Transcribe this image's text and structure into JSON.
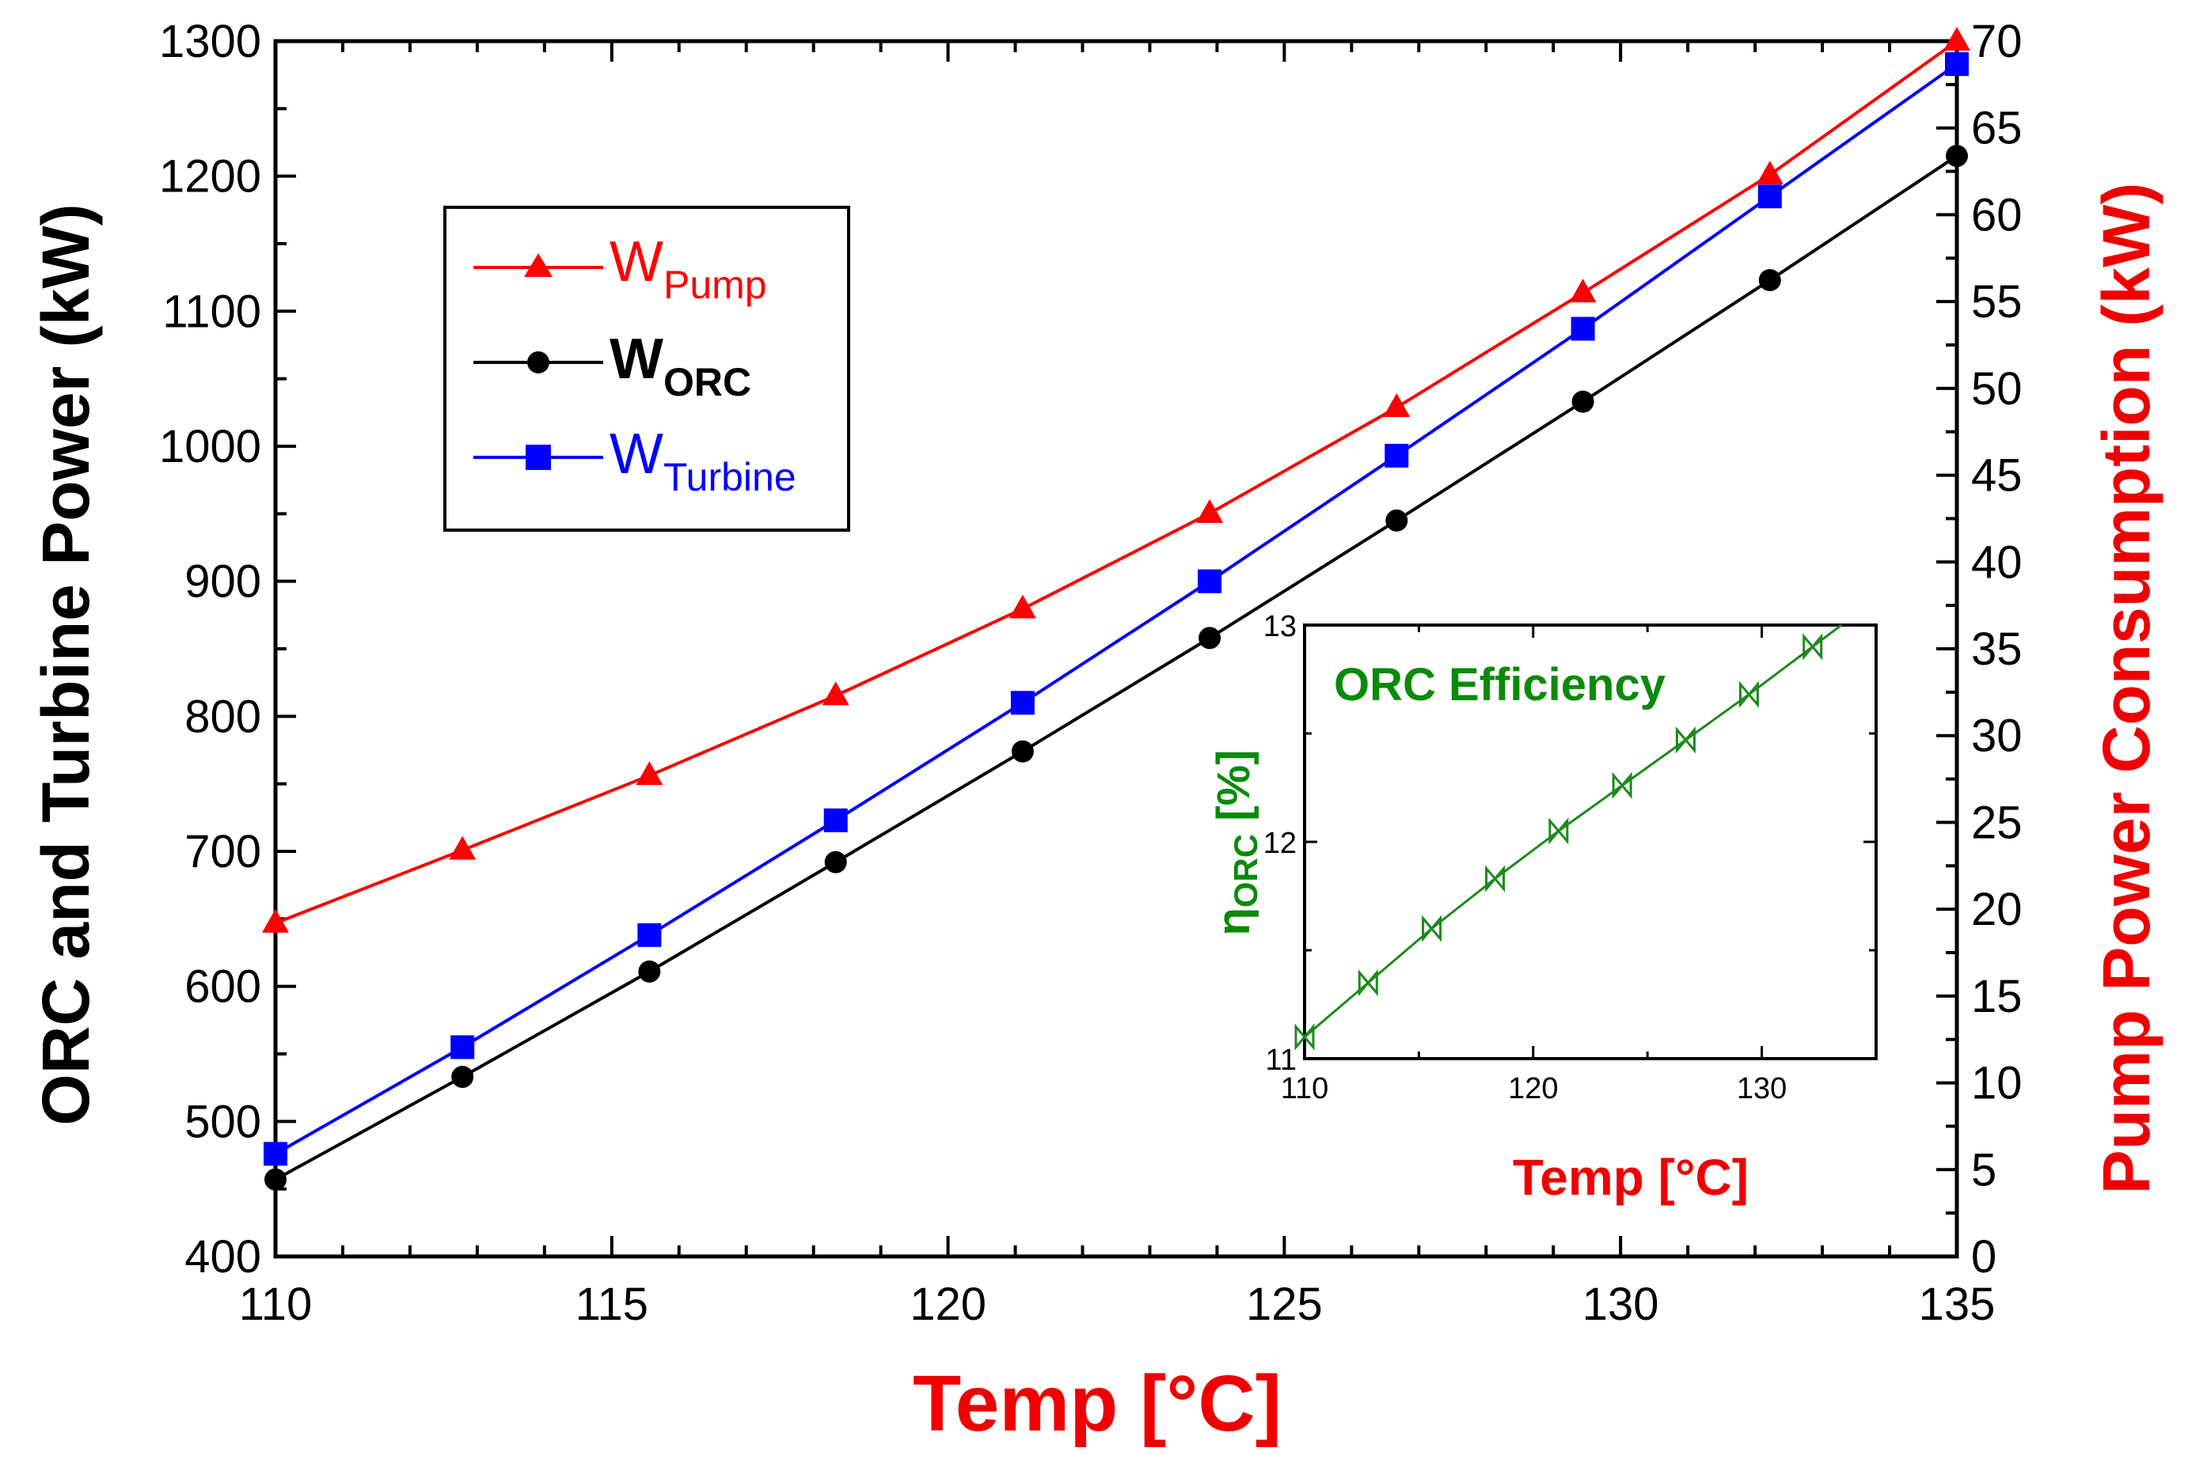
{
  "chart_data": [
    {
      "type": "line",
      "title": "",
      "xlabel": "Temp [°C]",
      "ylabel": "ORC and Turbine Power (kW)",
      "y2label": "Pump Power Consumption (kW)",
      "xlim": [
        110,
        135
      ],
      "ylim": [
        400,
        1300
      ],
      "y2lim": [
        0,
        70
      ],
      "xticks": [
        "110",
        "115",
        "120",
        "125",
        "130",
        "135"
      ],
      "yticks": [
        "400",
        "500",
        "600",
        "700",
        "800",
        "900",
        "1000",
        "1100",
        "1200",
        "1300"
      ],
      "y2ticks": [
        "0",
        "5",
        "10",
        "15",
        "20",
        "25",
        "30",
        "35",
        "40",
        "45",
        "50",
        "55",
        "60",
        "65",
        "70"
      ],
      "legend_position": "top-left",
      "colors": {
        "pump": "#ff0000",
        "orc": "#000000",
        "turbine": "#0000ff",
        "title": "#f00000"
      },
      "x": [
        110,
        112.78,
        115.56,
        118.33,
        121.11,
        123.89,
        126.67,
        129.44,
        132.22,
        135
      ],
      "series": [
        {
          "name": "W",
          "subscript": "Pump",
          "axis": "right",
          "marker": "triangle",
          "values": [
            19.2,
            23.4,
            27.7,
            32.3,
            37.3,
            42.8,
            48.9,
            55.5,
            62.3,
            70.0
          ]
        },
        {
          "name": "W",
          "subscript": "ORC",
          "axis": "left",
          "marker": "circle",
          "values": [
            457,
            533,
            611,
            692,
            774,
            858,
            945,
            1033,
            1123,
            1215
          ]
        },
        {
          "name": "W",
          "subscript": "Turbine",
          "axis": "left",
          "marker": "square",
          "values": [
            476,
            555,
            638,
            723,
            810,
            900,
            993,
            1087,
            1185,
            1283
          ]
        }
      ]
    },
    {
      "type": "line",
      "title": "ORC Efficiency",
      "xlabel": "Temp [°C]",
      "ylabel_symbol": "η",
      "ylabel_subscript": "ORC",
      "ylabel_unit": "[%]",
      "xlim": [
        110,
        135
      ],
      "ylim": [
        11,
        13
      ],
      "xticks": [
        "110",
        "120",
        "130"
      ],
      "yticks": [
        "11",
        "12",
        "13"
      ],
      "colors": {
        "line": "#1b8a1b",
        "title": "#0a8a0a",
        "xlabel": "#f00000"
      },
      "series": [
        {
          "name": "ORC Efficiency",
          "marker": "hourglass",
          "x": [
            110,
            112.78,
            115.56,
            118.33,
            121.11,
            123.89,
            126.67,
            129.44,
            132.22
          ],
          "values": [
            11.1,
            11.35,
            11.6,
            11.83,
            12.05,
            12.26,
            12.47,
            12.68,
            12.9
          ]
        }
      ]
    }
  ]
}
